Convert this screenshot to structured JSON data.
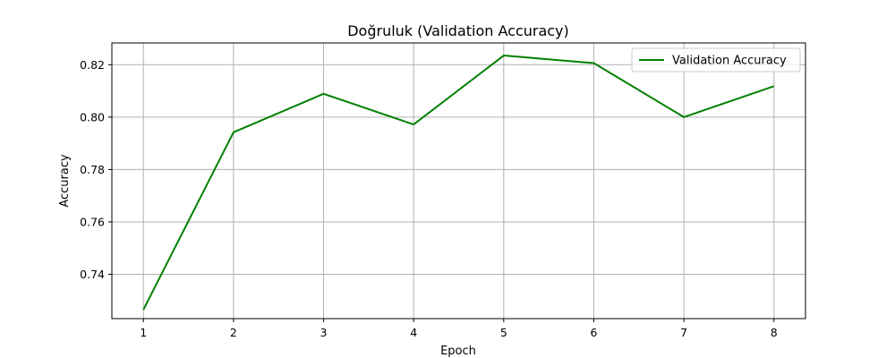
{
  "chart_data": {
    "type": "line",
    "title": "Doğruluk (Validation Accuracy)",
    "xlabel": "Epoch",
    "ylabel": "Accuracy",
    "x": [
      1,
      2,
      3,
      4,
      5,
      6,
      7,
      8
    ],
    "x_ticks": [
      "1",
      "2",
      "3",
      "4",
      "5",
      "6",
      "7",
      "8"
    ],
    "y_ticks": [
      "0.74",
      "0.76",
      "0.78",
      "0.80",
      "0.82"
    ],
    "xlim": [
      0.65,
      8.35
    ],
    "ylim": [
      0.7231,
      0.8283
    ],
    "grid": true,
    "legend_position": "top-right",
    "series": [
      {
        "name": "Validation Accuracy",
        "color": "#008000",
        "values": [
          0.7265,
          0.7942,
          0.8089,
          0.7972,
          0.8235,
          0.8206,
          0.8,
          0.8118
        ]
      }
    ]
  }
}
